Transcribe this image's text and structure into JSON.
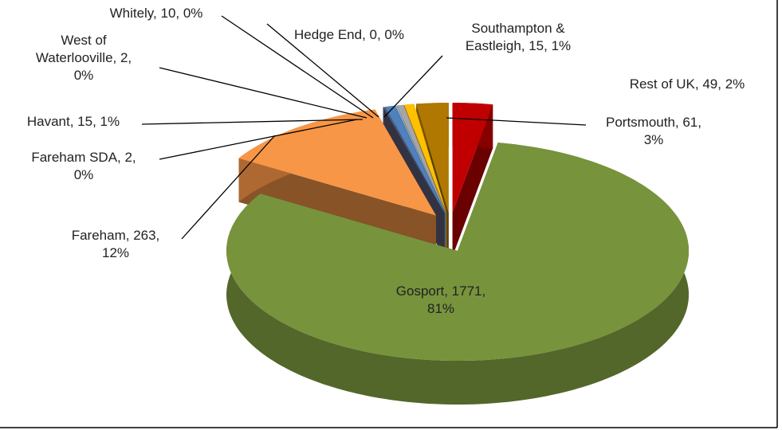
{
  "chart_data": {
    "type": "pie",
    "values": [
      61,
      1771,
      263,
      2,
      15,
      2,
      10,
      0,
      15,
      49
    ],
    "value_labels": [
      "Portsmouth, 61,\n3%",
      "Gosport, 1771,\n81%",
      "Fareham, 263,\n12%",
      "Fareham SDA, 2,\n0%",
      "Havant, 15, 1%",
      "West of\nWaterlooville, 2,\n0%",
      "Whitely, 10, 0%",
      "Hedge End, 0, 0%",
      "Southampton &\nEastleigh, 15, 1%",
      "Rest of UK, 49, 2%"
    ],
    "colors": [
      "#c00000",
      "#77933c",
      "#f79646",
      "#5a5a78",
      "#4f81bd",
      "#8db3e2",
      "#a6a6a6",
      "#d9d9d9",
      "#ffc000",
      "#b07800"
    ],
    "three_d": true,
    "exploded": true
  }
}
